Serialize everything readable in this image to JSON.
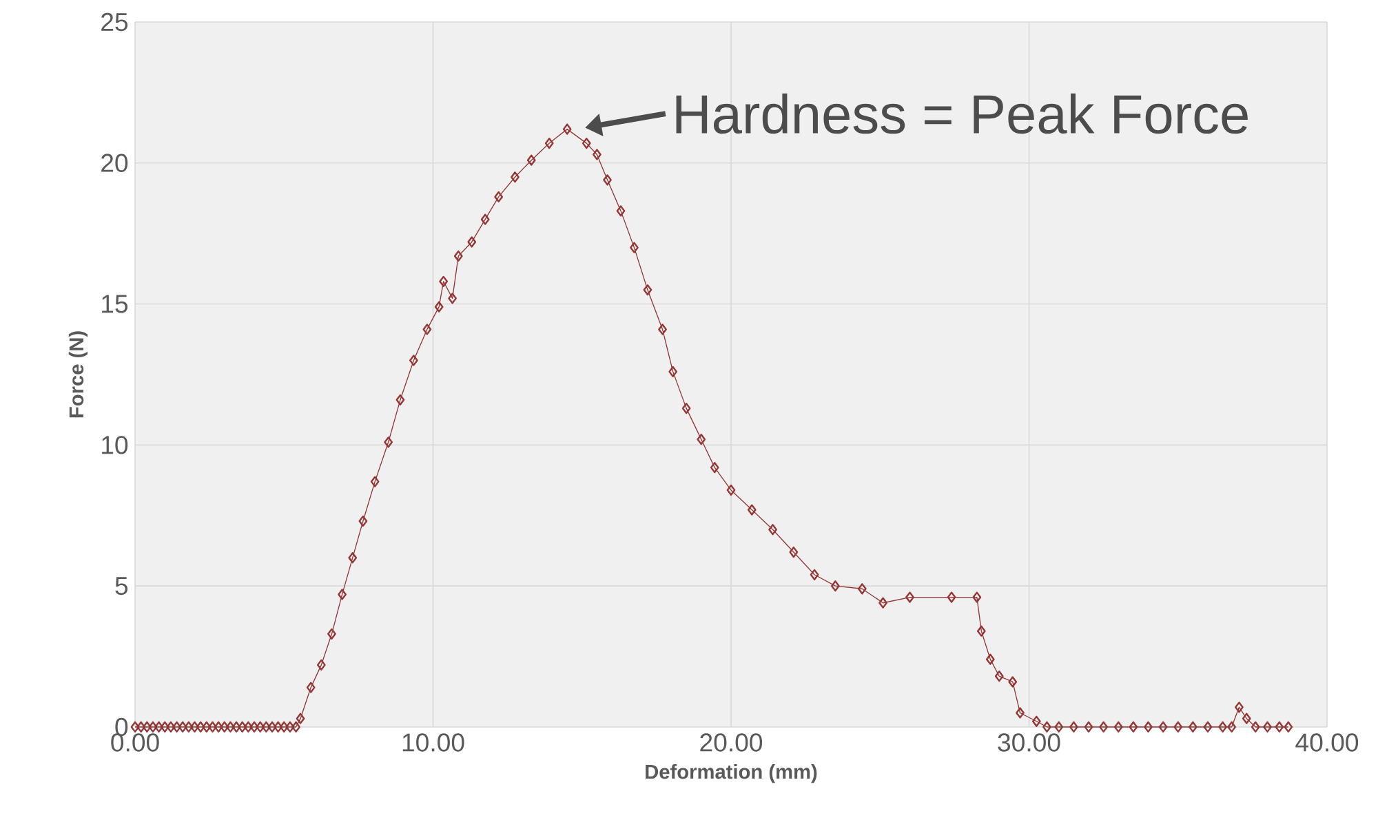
{
  "chart_data": {
    "type": "line",
    "xlabel": "Deformation (mm)",
    "ylabel": "Force (N)",
    "series": [
      {
        "color": "#943634",
        "x": [
          0,
          0.2,
          0.4,
          0.6,
          0.8,
          1.0,
          1.2,
          1.4,
          1.6,
          1.8,
          2.0,
          2.2,
          2.4,
          2.6,
          2.8,
          3.0,
          3.2,
          3.4,
          3.6,
          3.8,
          4.0,
          4.2,
          4.4,
          4.6,
          4.8,
          5.0,
          5.2,
          5.4,
          5.55,
          5.9,
          6.25,
          6.6,
          6.95,
          7.3,
          7.65,
          8.05,
          8.5,
          8.9,
          9.35,
          9.8,
          10.2,
          10.35,
          10.65,
          10.85,
          11.3,
          11.75,
          12.2,
          12.75,
          13.3,
          13.9,
          14.5,
          15.15,
          15.5,
          15.85,
          16.3,
          16.75,
          17.2,
          17.7,
          18.05,
          18.5,
          19.0,
          19.45,
          20.0,
          20.7,
          21.4,
          22.1,
          22.8,
          23.5,
          24.4,
          25.1,
          26.0,
          27.4,
          28.25,
          28.4,
          28.7,
          29.0,
          29.45,
          29.7,
          30.25,
          30.6,
          31.0,
          31.5,
          32.0,
          32.5,
          33.0,
          33.5,
          34.0,
          34.5,
          35.0,
          35.5,
          36.0,
          36.5,
          36.8,
          37.05,
          37.3,
          37.6,
          38.0,
          38.4,
          38.7
        ],
        "values": [
          0,
          0,
          0,
          0,
          0,
          0,
          0,
          0,
          0,
          0,
          0,
          0,
          0,
          0,
          0,
          0,
          0,
          0,
          0,
          0,
          0,
          0,
          0,
          0,
          0,
          0,
          0,
          0,
          0.3,
          1.4,
          2.2,
          3.3,
          4.7,
          6.0,
          7.3,
          8.7,
          10.1,
          11.6,
          13.0,
          14.1,
          14.9,
          15.8,
          15.2,
          16.7,
          17.2,
          18.0,
          18.8,
          19.5,
          20.1,
          20.7,
          21.2,
          20.7,
          20.3,
          19.4,
          18.3,
          17.0,
          15.5,
          14.1,
          12.6,
          11.3,
          10.2,
          9.2,
          8.4,
          7.7,
          7.0,
          6.2,
          5.4,
          5.0,
          4.9,
          4.4,
          4.6,
          4.6,
          4.6,
          3.4,
          2.4,
          1.8,
          1.6,
          0.5,
          0.2,
          0,
          0,
          0,
          0,
          0,
          0,
          0,
          0,
          0,
          0,
          0,
          0,
          0,
          0,
          0.7,
          0.3,
          0,
          0,
          0,
          0
        ]
      }
    ],
    "xlim": [
      0,
      40
    ],
    "ylim": [
      0,
      25
    ],
    "xticks": [
      {
        "value": 0,
        "label": "0.00"
      },
      {
        "value": 10,
        "label": "10.00"
      },
      {
        "value": 20,
        "label": "20.00"
      },
      {
        "value": 30,
        "label": "30.00"
      },
      {
        "value": 40,
        "label": "40.00"
      }
    ],
    "yticks": [
      0,
      5,
      10,
      15,
      20,
      25
    ],
    "grid": true,
    "marker": "diamond",
    "line_style": "solid",
    "annotations": [
      {
        "text": "Hardness = Peak Force",
        "x": 14.5,
        "y": 21.2
      }
    ]
  }
}
